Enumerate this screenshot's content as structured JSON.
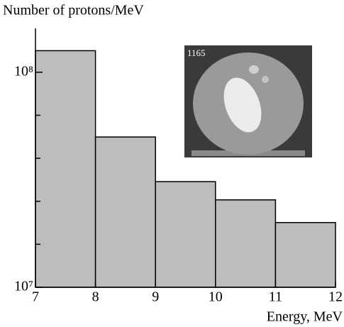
{
  "chart_data": {
    "type": "histogram",
    "y_label": "Number of protons/MeV",
    "x_label": "Energy, MeV",
    "inset_label": "1165",
    "bins": [
      7,
      8,
      9,
      10,
      11,
      12
    ],
    "values": [
      126000000,
      50000000,
      31000000,
      25500000,
      20000000
    ],
    "color": "#bdbdbd",
    "log_y": true,
    "xlim": [
      7,
      12
    ],
    "xticks": [
      7,
      8,
      9,
      10,
      11,
      12
    ],
    "ylim": [
      10000000,
      160000000
    ],
    "yticks": [
      {
        "value": 10000000,
        "label": "10⁷"
      },
      {
        "value": 100000000,
        "label": "10⁸"
      }
    ],
    "yminorticks": [
      15848932,
      25118864,
      39810717,
      63095734
    ]
  }
}
